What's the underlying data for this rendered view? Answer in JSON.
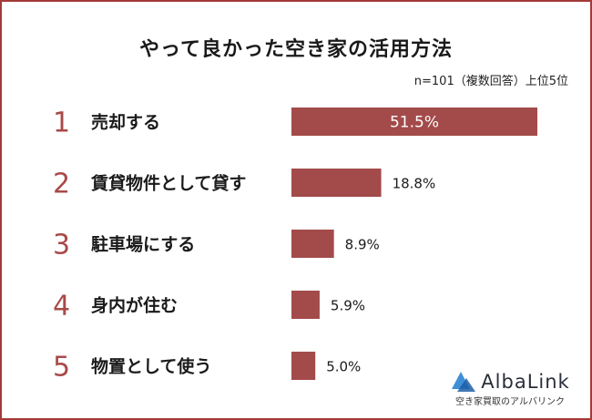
{
  "title": "やって良かった空き家の活用方法",
  "subtitle": "n=101（複数回答）上位5位",
  "colors": {
    "bar": "#a24b4a",
    "accent": "#a84a48",
    "border": "#a33a3a"
  },
  "chart_data": {
    "type": "bar",
    "orientation": "horizontal",
    "categories": [
      "売却する",
      "賃貸物件として貸す",
      "駐車場にする",
      "身内が住む",
      "物置として使う"
    ],
    "ranks": [
      "1",
      "2",
      "3",
      "4",
      "5"
    ],
    "values": [
      51.5,
      18.8,
      8.9,
      5.9,
      5.0
    ],
    "value_labels": [
      "51.5%",
      "18.8%",
      "8.9%",
      "5.9%",
      "5.0%"
    ],
    "unit": "%",
    "xlim": [
      0,
      51.5
    ],
    "grid": false,
    "legend": "none"
  },
  "logo": {
    "name": "AlbaLink",
    "tagline": "空き家買取のアルバリンク"
  }
}
